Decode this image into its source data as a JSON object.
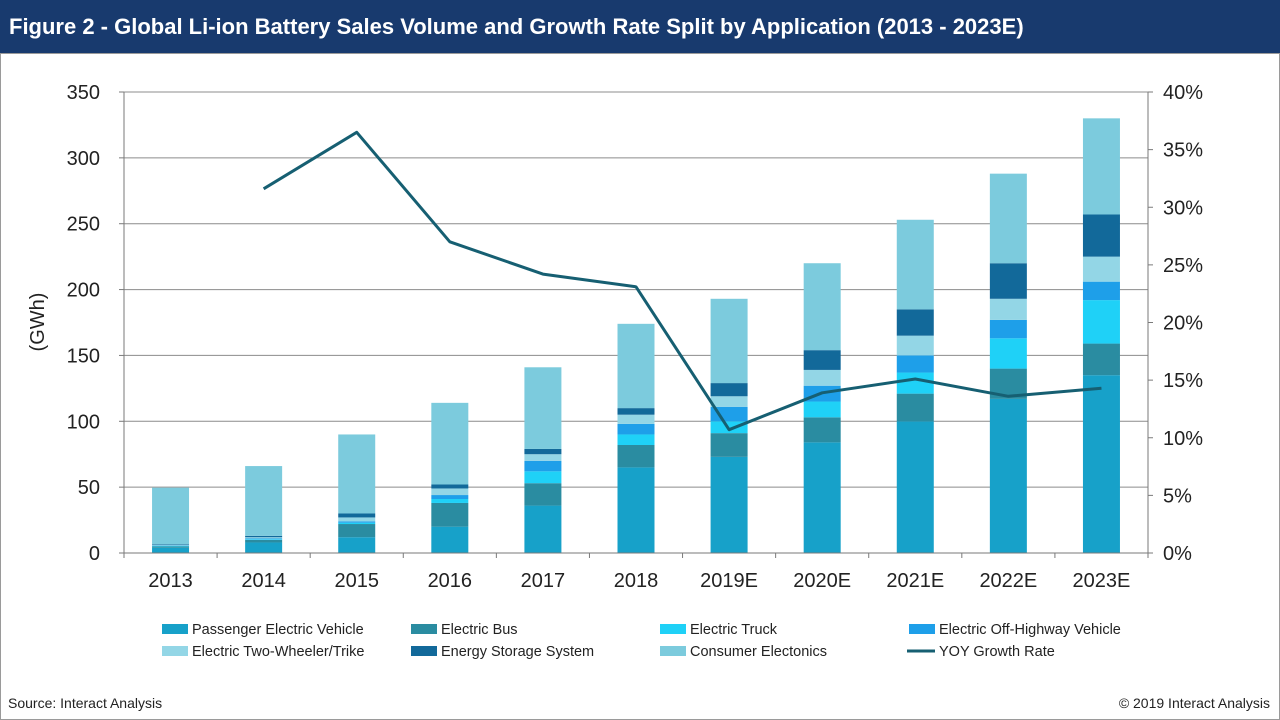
{
  "header": {
    "title": "Figure 2 - Global Li-ion Battery Sales Volume and Growth Rate Split by Application (2013 - 2023E)"
  },
  "footer": {
    "source": "Source: Interact Analysis",
    "copyright": "© 2019 Interact Analysis"
  },
  "chart_data": {
    "type": "bar",
    "stacked": true,
    "categories": [
      "2013",
      "2014",
      "2015",
      "2016",
      "2017",
      "2018",
      "2019E",
      "2020E",
      "2021E",
      "2022E",
      "2023E"
    ],
    "ylabel": "(GWh)",
    "ylim": [
      0,
      350
    ],
    "yticks": [
      0,
      50,
      100,
      150,
      200,
      250,
      300,
      350
    ],
    "y2lim": [
      0,
      40
    ],
    "y2ticks": [
      "0%",
      "5%",
      "10%",
      "15%",
      "20%",
      "25%",
      "30%",
      "35%",
      "40%"
    ],
    "grid": true,
    "legend_position": "bottom",
    "series": [
      {
        "name": "Passenger Electric Vehicle",
        "color": "#17a1c9",
        "values": [
          4,
          8,
          12,
          20,
          36,
          65,
          73,
          84,
          100,
          117,
          135
        ]
      },
      {
        "name": "Electric Bus",
        "color": "#2a8ca1",
        "values": [
          1,
          2,
          10,
          18,
          17,
          17,
          18,
          19,
          21,
          23,
          24
        ]
      },
      {
        "name": "Electric Truck",
        "color": "#1fd1f7",
        "values": [
          0.3,
          0.5,
          1,
          3,
          9,
          8,
          9,
          12,
          16,
          23,
          33
        ]
      },
      {
        "name": "Electric Off-Highway Vehicle",
        "color": "#1e9fe9",
        "values": [
          0.3,
          0.5,
          1,
          3,
          8,
          8,
          11,
          12,
          13,
          14,
          14
        ]
      },
      {
        "name": "Electric Two-Wheeler/Trike",
        "color": "#93d6e6",
        "values": [
          0.5,
          1,
          3,
          5,
          5,
          7,
          8,
          12,
          15,
          16,
          19
        ]
      },
      {
        "name": "Energy Storage System",
        "color": "#12699a",
        "values": [
          0.5,
          1,
          3,
          3,
          4,
          5,
          10,
          15,
          20,
          27,
          32
        ]
      },
      {
        "name": "Consumer Electonics",
        "color": "#7ccbdd",
        "values": [
          43,
          53,
          60,
          62,
          62,
          64,
          64,
          66,
          68,
          68,
          73
        ]
      }
    ],
    "line_series": {
      "name": "YOY Growth Rate",
      "color": "#165f72",
      "axis": "secondary",
      "unit": "%",
      "values": [
        null,
        31.6,
        36.5,
        27.0,
        24.2,
        23.1,
        10.7,
        13.9,
        15.1,
        13.6,
        14.3
      ]
    }
  }
}
